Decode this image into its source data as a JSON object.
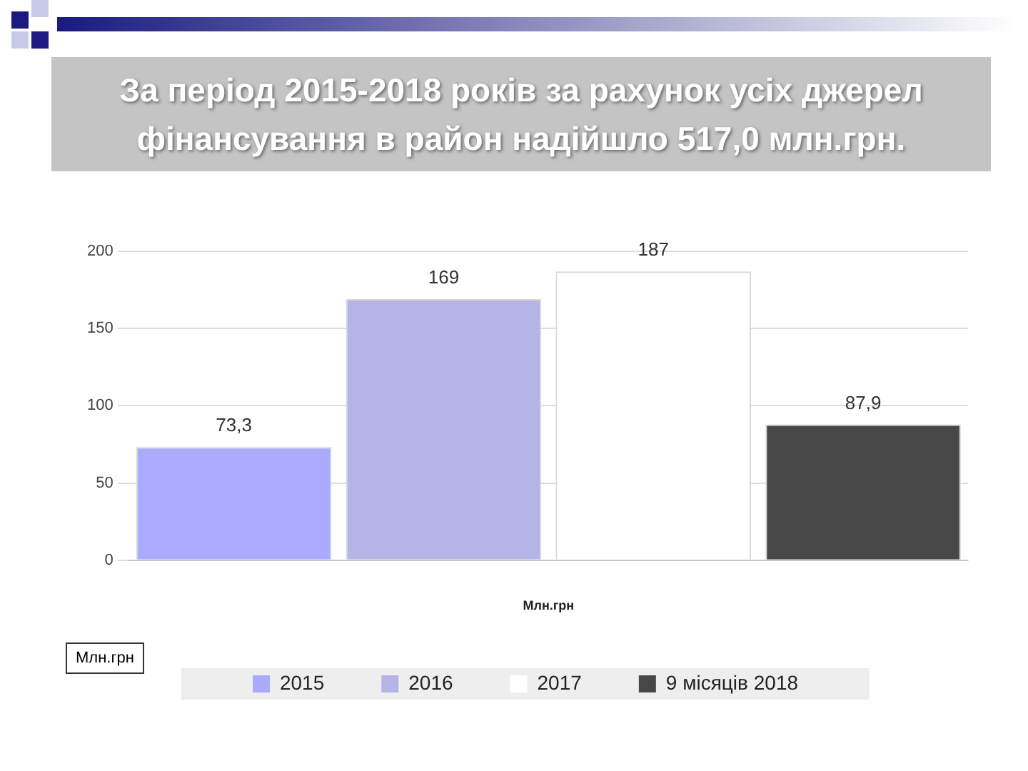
{
  "chart_data": {
    "type": "bar",
    "title": "За період 2015-2018 років за рахунок усіх джерел фінансування в район надійшло 517,0 млн.грн.",
    "categories": [
      null,
      null,
      null,
      null
    ],
    "xlabel": "Млн.грн",
    "series": [
      {
        "name": "2015",
        "color": "#aaaaff",
        "values": [
          73.3,
          null,
          null,
          null
        ],
        "value_labels": [
          "73,3",
          null,
          null,
          null
        ]
      },
      {
        "name": "2016",
        "color": "#b4b4e6",
        "values": [
          null,
          169,
          null,
          null
        ],
        "value_labels": [
          null,
          "169",
          null,
          null
        ]
      },
      {
        "name": "2017",
        "color": "#ffffff",
        "values": [
          null,
          null,
          187,
          null
        ],
        "value_labels": [
          null,
          null,
          "187",
          null
        ]
      },
      {
        "name": "9 місяців 2018",
        "color": "#474747",
        "values": [
          null,
          null,
          null,
          87.9
        ],
        "value_labels": [
          null,
          null,
          null,
          "87,9"
        ]
      }
    ],
    "ylim": [
      0,
      200
    ],
    "yticks": [
      0,
      50,
      100,
      150,
      200
    ],
    "grid": "y",
    "legend": "bottom",
    "annotations": [
      "Млн.грн"
    ]
  }
}
